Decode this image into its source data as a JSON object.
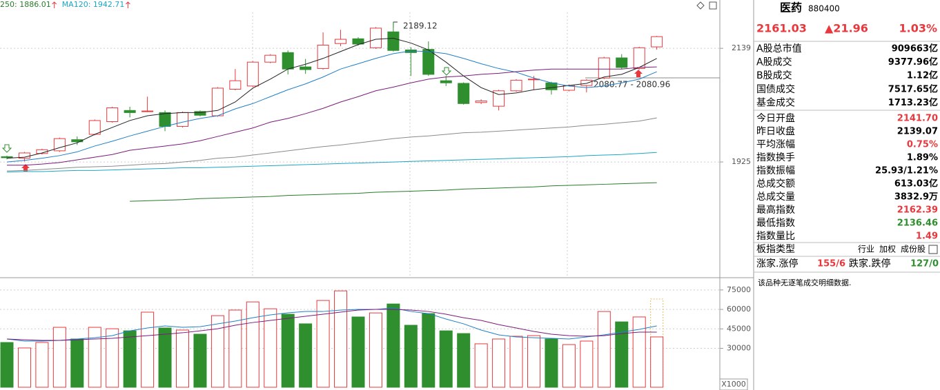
{
  "chart_data": [
    {
      "type": "candlestick",
      "legend": [
        {
          "text": "250: 1886.01",
          "color": "#2a7a2a"
        },
        {
          "text": "MA120: 1942.71",
          "color": "#1aa7c4"
        }
      ],
      "open": [
        1935,
        1932,
        1941,
        1946,
        1967,
        1977,
        2001,
        2022,
        2020,
        2018,
        1992,
        2020,
        2012,
        2062,
        2068,
        2113,
        2131,
        2104,
        2101,
        2148,
        2157,
        2140,
        2170,
        2136,
        2137,
        2078,
        2073,
        2037,
        2030,
        2059,
        2080,
        2074,
        2060,
        2069,
        2083,
        2121,
        2101,
        2141.7
      ],
      "high": [
        1937,
        1944,
        1950,
        1971,
        1973,
        2005,
        2029,
        2029,
        2048,
        2022,
        2020,
        2022,
        2066,
        2100,
        2115,
        2128,
        2135,
        2119,
        2169,
        2174,
        2160,
        2179,
        2189.12,
        2141,
        2152,
        2087,
        2075,
        2043,
        2061,
        2081,
        2087,
        2076,
        2071,
        2081,
        2123,
        2128,
        2142,
        2162.39
      ],
      "low": [
        1930,
        1926,
        1939,
        1944,
        1957,
        1975,
        1999,
        2009,
        2019,
        1983,
        1990,
        2011,
        2010,
        2060,
        2066,
        2111,
        2090,
        2091,
        2099,
        2143,
        2144,
        2138,
        2133,
        2087,
        2087,
        2068,
        2033,
        2034,
        2022,
        2057,
        2061,
        2052,
        2058,
        2056,
        2080.96,
        2100,
        2099,
        2136.46
      ],
      "close": [
        1933,
        1942,
        1948,
        1969,
        1963,
        2003,
        2027,
        2018,
        2021,
        1992,
        2018,
        2013,
        2064,
        2078,
        2113,
        2126,
        2100,
        2099,
        2145,
        2156,
        2147,
        2177,
        2135,
        2131,
        2090,
        2074,
        2035,
        2040,
        2059,
        2079,
        2081,
        2061,
        2069,
        2079,
        2121,
        2103,
        2140,
        2161.03
      ],
      "up_color": "#e8383d",
      "down_color": "#2f8f2f",
      "ma_series": [
        {
          "color": "#222222",
          "values": [
            1932,
            1934,
            1942,
            1952,
            1961,
            1977,
            1990,
            2003,
            2012,
            2016,
            2018,
            2018,
            2022,
            2038,
            2064,
            2081,
            2100,
            2109,
            2120,
            2133,
            2146,
            2156,
            2158,
            2149,
            2136,
            2113,
            2087,
            2065,
            2052,
            2055,
            2061,
            2065,
            2069,
            2073,
            2085,
            2090,
            2103,
            2120
          ]
        },
        {
          "color": "#1f7fc8",
          "values": [
            1925,
            1928,
            1932,
            1937,
            1944,
            1955,
            1964,
            1974,
            1983,
            1992,
            2000,
            2007,
            2012,
            2025,
            2035,
            2048,
            2061,
            2072,
            2085,
            2100,
            2110,
            2120,
            2129,
            2134,
            2133,
            2129,
            2120,
            2110,
            2101,
            2094,
            2083,
            2074,
            2068,
            2065,
            2068,
            2074,
            2081,
            2095
          ]
        },
        {
          "color": "#7a1a7a",
          "values": [
            1919,
            1919,
            1921,
            1924,
            1929,
            1934,
            1939,
            1947,
            1951,
            1955,
            1959,
            1965,
            1973,
            1981,
            1989,
            2000,
            2007,
            2016,
            2026,
            2038,
            2048,
            2059,
            2066,
            2074,
            2081,
            2085,
            2087,
            2090,
            2092,
            2095,
            2098,
            2100,
            2100,
            2100,
            2100,
            2100,
            2103,
            2104
          ]
        },
        {
          "color": "#8a8a8a",
          "values": [
            1908,
            1909,
            1911,
            1913,
            1915,
            1916,
            1917,
            1919,
            1921,
            1922,
            1925,
            1928,
            1932,
            1934,
            1938,
            1942,
            1946,
            1950,
            1954,
            1957,
            1961,
            1965,
            1969,
            1972,
            1974,
            1977,
            1980,
            1981,
            1983,
            1985,
            1987,
            1989,
            1991,
            1994,
            1996,
            1999,
            2002,
            2008
          ]
        },
        {
          "color": "#1aa7c4",
          "values": [
            1906,
            1907,
            1907,
            1908,
            1909,
            1909,
            1910,
            1911,
            1912,
            1913,
            1914,
            1914,
            1915,
            1916,
            1917,
            1918,
            1919,
            1920,
            1921,
            1922,
            1923,
            1924,
            1925,
            1926,
            1927,
            1928,
            1929,
            1930,
            1931,
            1932,
            1933,
            1934,
            1935,
            1937,
            1938,
            1939,
            1941,
            1943
          ]
        },
        {
          "color": "#2a7a2a",
          "values": [
            null,
            null,
            null,
            null,
            null,
            null,
            null,
            1851,
            1852,
            1853,
            1854,
            1856,
            1857,
            1858,
            1859,
            1860,
            1862,
            1863,
            1864,
            1865,
            1866,
            1868,
            1869,
            1870,
            1871,
            1872,
            1874,
            1875,
            1876,
            1877,
            1878,
            1880,
            1881,
            1882,
            1883,
            1884,
            1885,
            1886
          ]
        }
      ],
      "ylim": [
        1711,
        2230
      ],
      "yticks": [
        1925,
        2139
      ],
      "annotations": [
        {
          "text": "2189.12"
        },
        {
          "text": "2080.77 - 2080.96"
        }
      ]
    },
    {
      "type": "bar",
      "values": [
        34500,
        30300,
        34500,
        46200,
        37200,
        46200,
        45100,
        43500,
        57900,
        45700,
        44100,
        40900,
        55200,
        59500,
        65800,
        60500,
        56300,
        48900,
        66900,
        74300,
        54200,
        57300,
        64200,
        47800,
        56800,
        43500,
        41400,
        33500,
        37200,
        39300,
        39800,
        37200,
        32900,
        35600,
        58400,
        50400,
        54200,
        38800
      ],
      "estimate": 68000,
      "estimate_color": "#e0c060",
      "ma_series": [
        {
          "color": "#1f7fc8",
          "values": [
            37200,
            35600,
            35600,
            36100,
            37200,
            38200,
            39800,
            43500,
            45700,
            47300,
            46200,
            46700,
            48900,
            51000,
            53600,
            55800,
            57400,
            58400,
            58400,
            59500,
            60000,
            60000,
            61100,
            58400,
            56800,
            52600,
            48900,
            44100,
            40400,
            38800,
            38200,
            37700,
            37200,
            38800,
            40400,
            42500,
            44600,
            47300
          ]
        },
        {
          "color": "#7a1a7a",
          "values": [
            37200,
            36600,
            36100,
            36100,
            36600,
            37200,
            37700,
            38800,
            39800,
            40900,
            42000,
            43500,
            45100,
            47800,
            49900,
            51500,
            53100,
            54700,
            56300,
            57900,
            59500,
            60000,
            60000,
            59500,
            58400,
            56300,
            53600,
            51500,
            48300,
            45700,
            43000,
            40900,
            39800,
            39300,
            39800,
            41400,
            42500,
            42500
          ]
        }
      ],
      "ylim": [
        0,
        83400
      ],
      "yticks": [
        30000,
        45000,
        60000,
        75000
      ],
      "unit_label": "X1000"
    }
  ],
  "quote_panel": {
    "name": "医药",
    "code": "880400",
    "price": "2161.03",
    "change": "▲21.96",
    "change_pct": "1.03%",
    "quote_color": "#e8383d",
    "market": [
      {
        "label": "A股总市值",
        "value": "909663亿",
        "color": "#000000"
      },
      {
        "label": "A股成交",
        "value": "9377.96亿",
        "color": "#000000"
      },
      {
        "label": "B股成交",
        "value": "1.12亿",
        "color": "#000000"
      },
      {
        "label": "国债成交",
        "value": "7517.65亿",
        "color": "#000000"
      },
      {
        "label": "基金成交",
        "value": "1713.23亿",
        "color": "#000000"
      }
    ],
    "stats": [
      {
        "label": "今日开盘",
        "value": "2141.70",
        "color": "#e8383d"
      },
      {
        "label": "昨日收盘",
        "value": "2139.07",
        "color": "#000000"
      },
      {
        "label": "平均涨幅",
        "value": "0.75%",
        "color": "#e8383d"
      },
      {
        "label": "指数换手",
        "value": "1.89%",
        "color": "#000000"
      },
      {
        "label": "指数振幅",
        "value": "25.93/1.21%",
        "color": "#000000"
      },
      {
        "label": "总成交额",
        "value": "613.03亿",
        "color": "#000000"
      },
      {
        "label": "总成交量",
        "value": "3832.9万",
        "color": "#000000"
      },
      {
        "label": "最高指数",
        "value": "2162.39",
        "color": "#e8383d"
      },
      {
        "label": "最低指数",
        "value": "2136.46",
        "color": "#2f8f2f"
      },
      {
        "label": "指数量比",
        "value": "1.49",
        "color": "#e8383d"
      }
    ],
    "sector_type": {
      "label": "板指类型",
      "options": [
        "行业",
        "加权",
        "成份股"
      ]
    },
    "breadth": {
      "up_label": "涨家.涨停",
      "up_value": "155/6",
      "down_label": "跌家.跌停",
      "down_value": "127/0",
      "up_color": "#e8383d",
      "down_color": "#2f8f2f"
    },
    "note": "该品种无逐笔成交明细数据."
  }
}
